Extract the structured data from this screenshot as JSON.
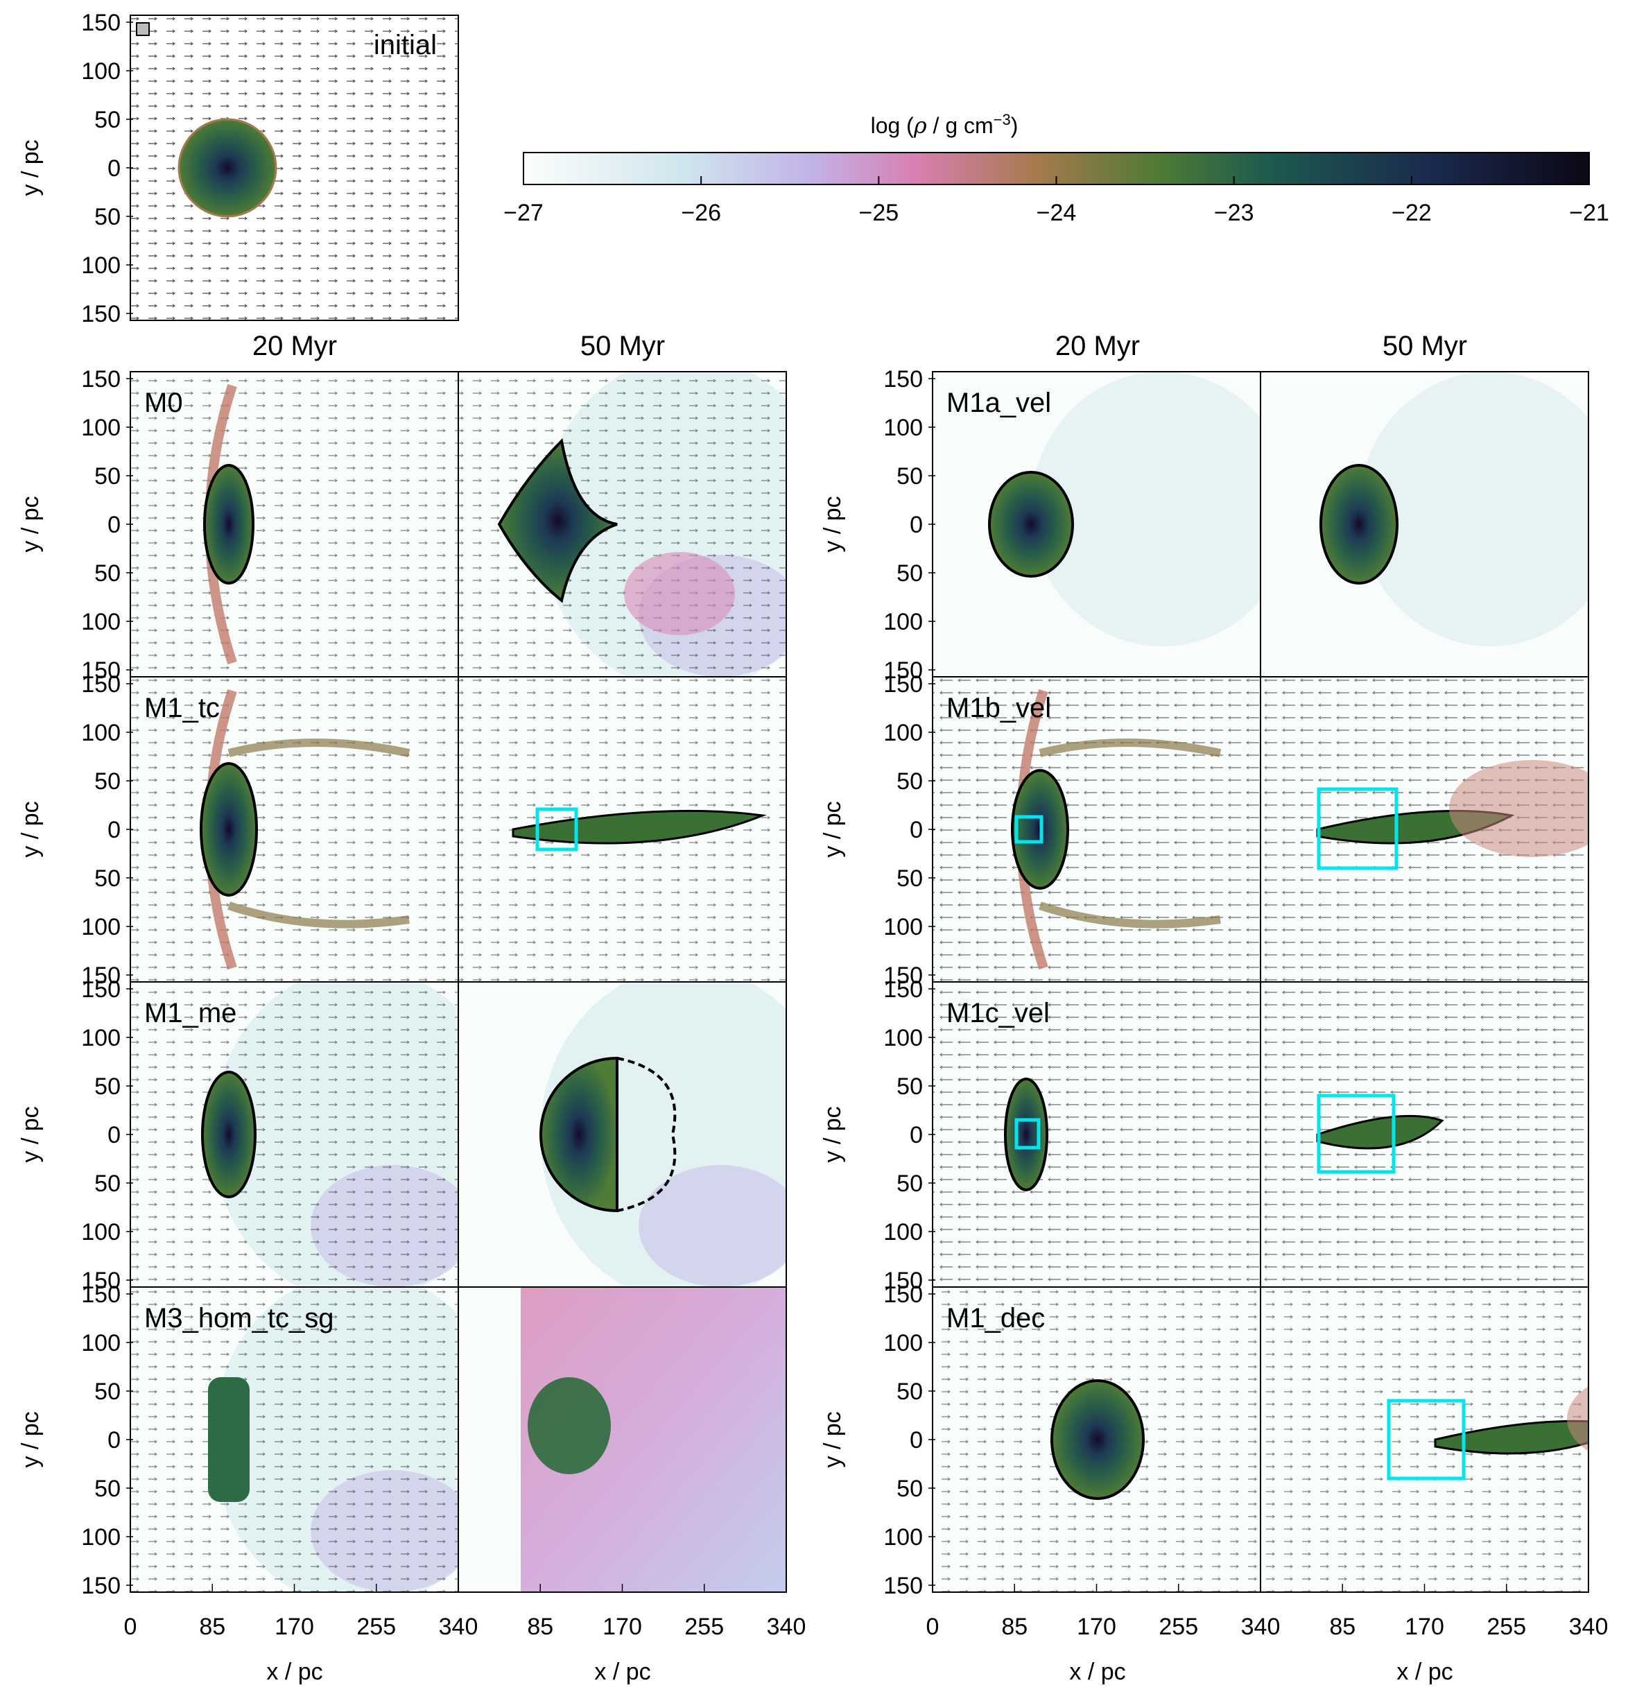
{
  "figure": {
    "colorbar": {
      "label_prefix": "log (",
      "label_rho": "ρ",
      "label_mid": " / g cm",
      "label_exp": "−3",
      "label_suffix": ")",
      "min": -27,
      "max": -21,
      "ticks": [
        "−27",
        "−26",
        "−25",
        "−24",
        "−23",
        "−22",
        "−21"
      ],
      "colors": [
        "#fbfdfb",
        "#cfe6ee",
        "#c2b2e8",
        "#d87fb0",
        "#a77a4e",
        "#4c7a35",
        "#1d5a4f",
        "#1a2a4e",
        "#0c0716"
      ]
    },
    "initial_panel": {
      "label": "initial"
    },
    "column_titles": [
      "20 Myr",
      "50 Myr",
      "20 Myr",
      "50 Myr"
    ],
    "left_rows": [
      "M0",
      "M1_tc",
      "M1_me",
      "M3_hom_tc_sg"
    ],
    "right_rows": [
      "M1a_vel",
      "M1b_vel",
      "M1c_vel",
      "M1_dec"
    ],
    "y_ticks": [
      "150",
      "100",
      "50",
      "0",
      "50",
      "100",
      "150"
    ],
    "y_label": "y / pc",
    "x_ticks": [
      "0",
      "85",
      "170",
      "255",
      "340"
    ],
    "x_label": "x / pc",
    "colors": {
      "contour": "#000000",
      "box": "#00e5ee",
      "frame": "#000000"
    }
  }
}
